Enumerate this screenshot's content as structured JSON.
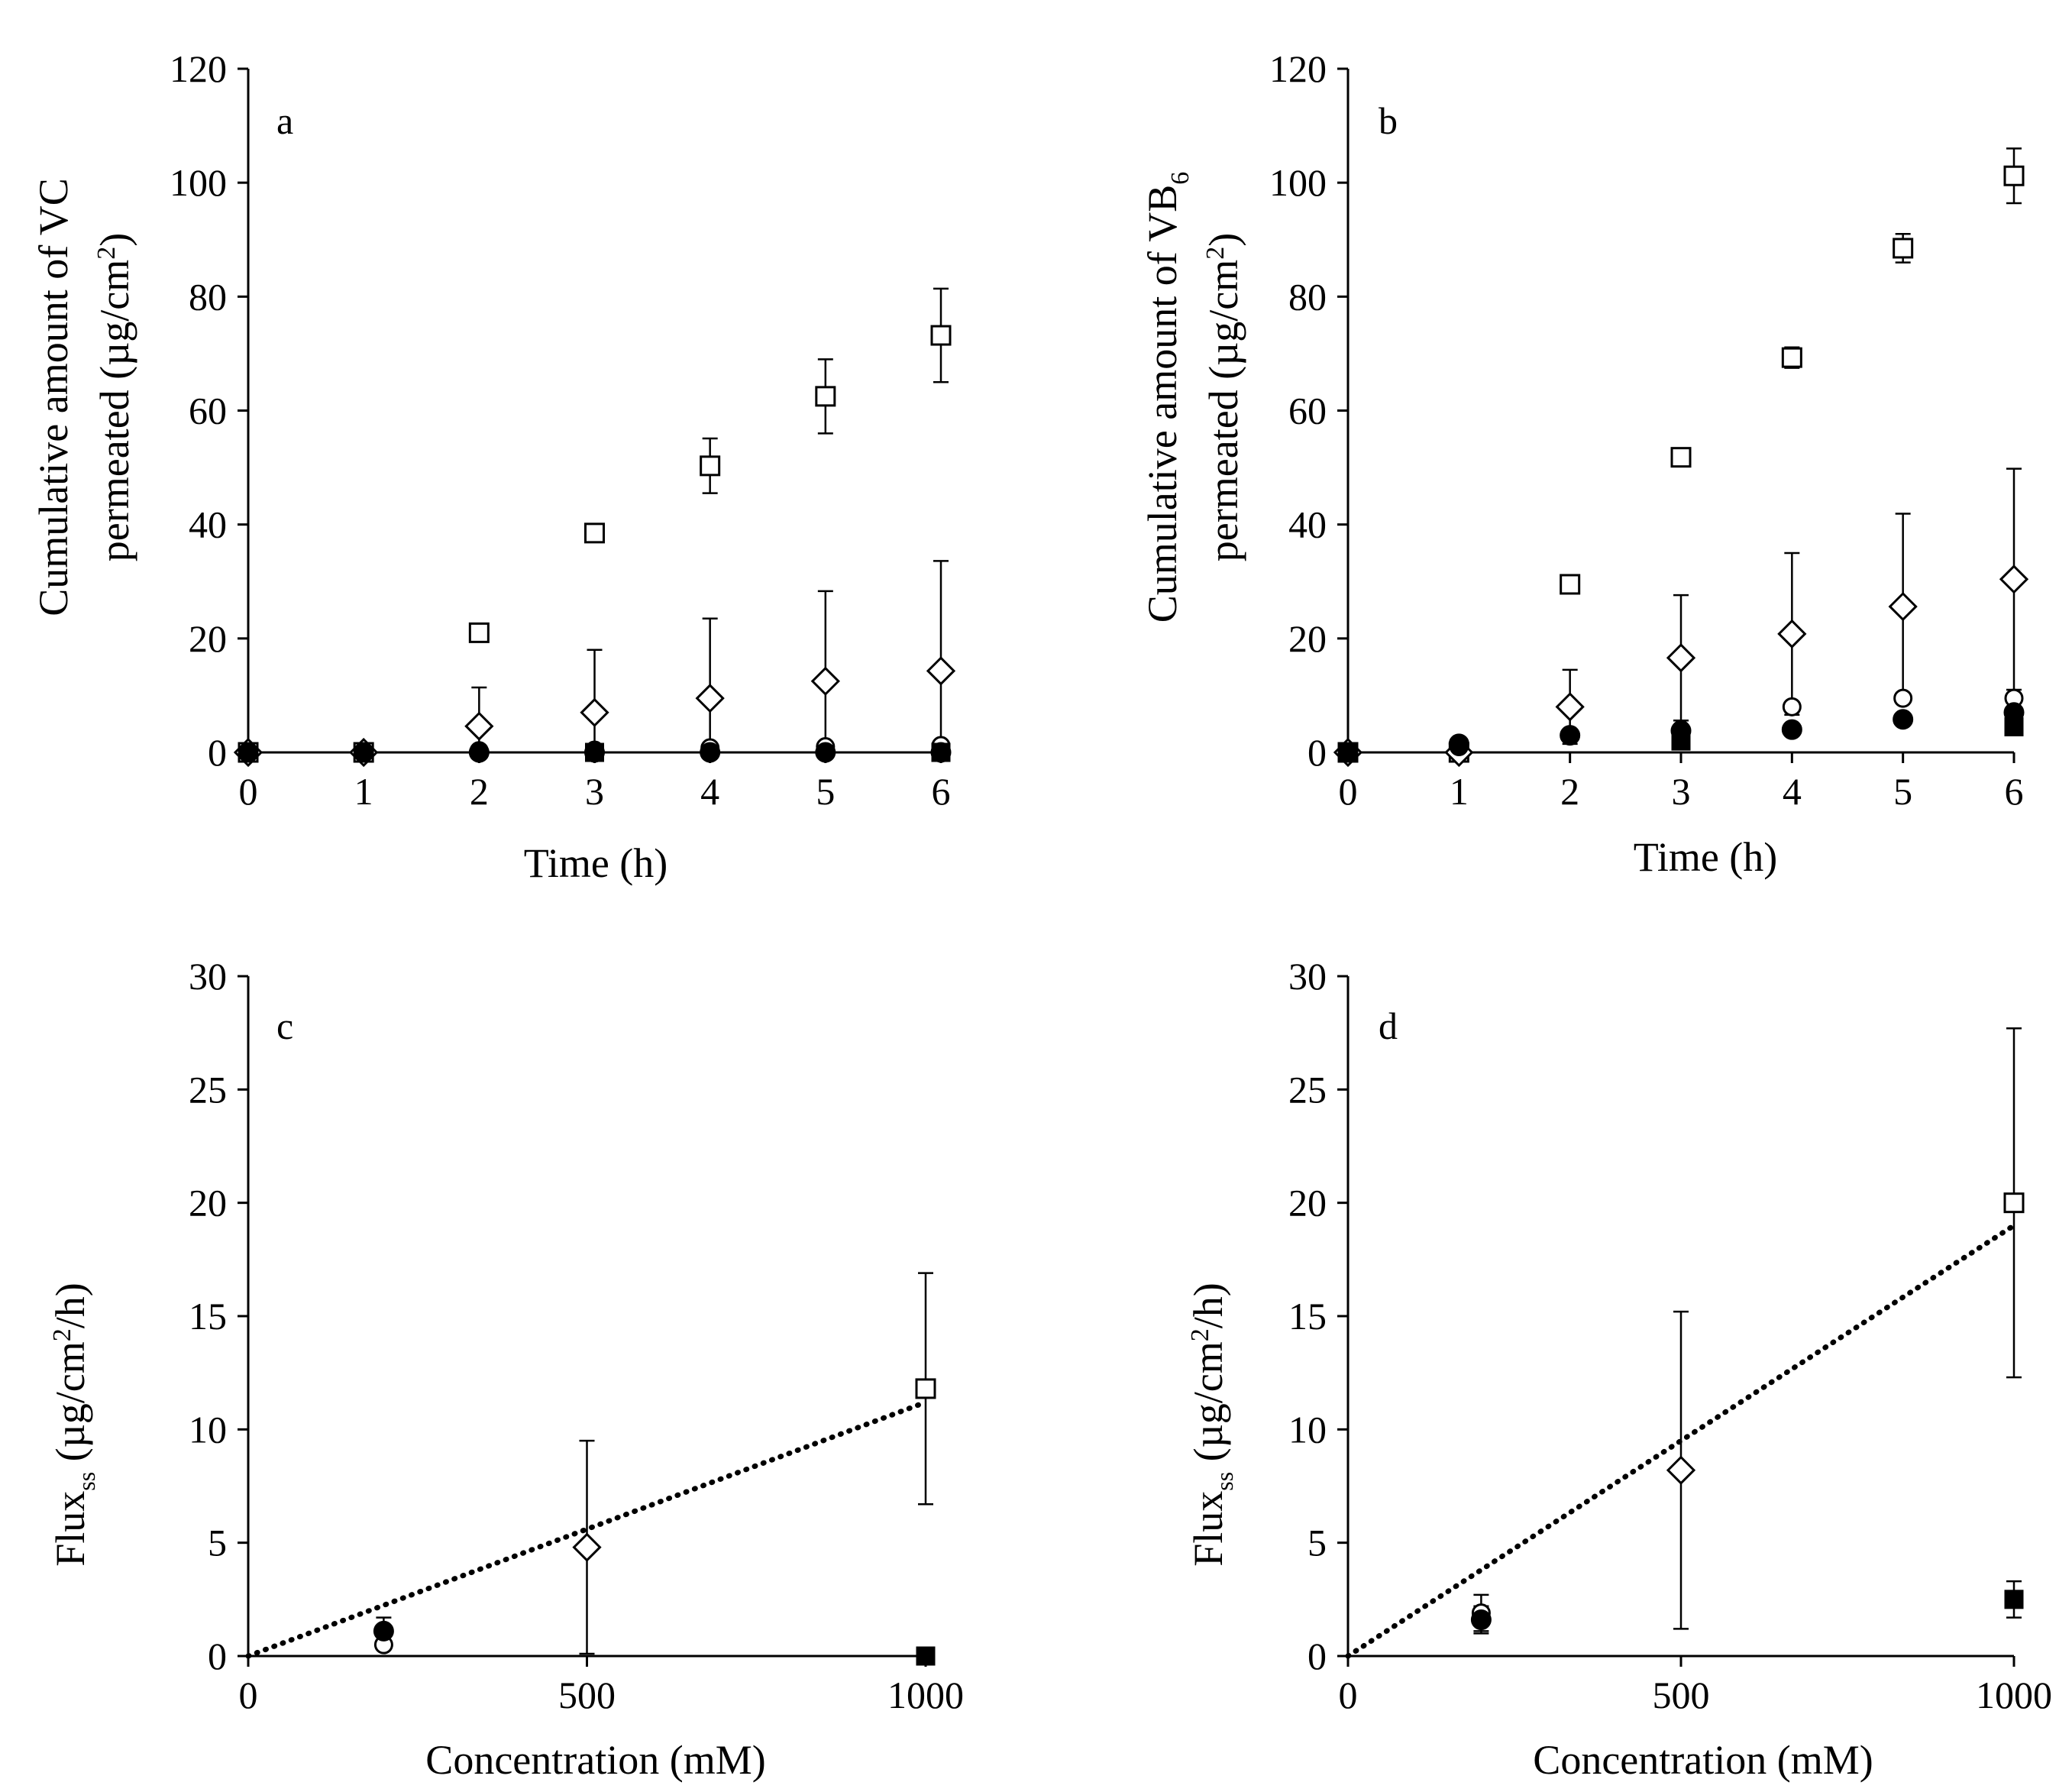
{
  "chart_data": [
    {
      "panel": "a",
      "type": "scatter",
      "panel_label": "a",
      "xlabel": "Time (h)",
      "ylabel_line1": "Cumulative amount of VC",
      "ylabel_line2_prefix": "permeated (µg/cm",
      "ylabel_line2_sup": "2",
      "ylabel_line2_suffix": ")",
      "xlim": [
        0,
        6
      ],
      "ylim": [
        0,
        120
      ],
      "xticks": [
        0,
        1,
        2,
        3,
        4,
        5,
        6
      ],
      "yticks": [
        0,
        20,
        40,
        60,
        80,
        100,
        120
      ],
      "series": [
        {
          "name": "open-square",
          "marker": "square",
          "filled": false,
          "x": [
            0,
            1,
            2,
            3,
            4,
            5,
            6
          ],
          "y": [
            0,
            0,
            21,
            38.5,
            50.3,
            62.5,
            73.2
          ],
          "err": [
            0,
            0,
            1,
            1,
            4.8,
            6.5,
            8.2
          ]
        },
        {
          "name": "open-diamond",
          "marker": "diamond",
          "filled": false,
          "x": [
            0,
            1,
            2,
            3,
            4,
            5,
            6
          ],
          "y": [
            0,
            0,
            4.6,
            7,
            9.5,
            12.5,
            14.3
          ],
          "err": [
            0,
            0,
            6.8,
            11,
            14,
            15.8,
            19.3
          ]
        },
        {
          "name": "open-circle",
          "marker": "circle",
          "filled": false,
          "x": [
            0,
            1,
            2,
            3,
            4,
            5,
            6
          ],
          "y": [
            0,
            0,
            0.3,
            0.4,
            0.8,
            1,
            1.2
          ],
          "err": [
            0,
            0,
            0,
            0,
            0,
            0,
            0
          ]
        },
        {
          "name": "filled-circle",
          "marker": "circle",
          "filled": true,
          "x": [
            0,
            1,
            2,
            3,
            4,
            5,
            6
          ],
          "y": [
            0,
            0,
            0,
            0,
            0,
            0,
            0
          ],
          "err": [
            0,
            0,
            0,
            0,
            0,
            0,
            0
          ]
        },
        {
          "name": "filled-square",
          "marker": "square",
          "filled": true,
          "x": [
            3,
            6
          ],
          "y": [
            0,
            0
          ],
          "err": [
            0,
            0
          ]
        }
      ]
    },
    {
      "panel": "b",
      "type": "scatter",
      "panel_label": "b",
      "xlabel": "Time (h)",
      "ylabel_line1_prefix": "Cumulative amount of VB",
      "ylabel_line1_sub": "6",
      "ylabel_line2_prefix": "permeated (µg/cm",
      "ylabel_line2_sup": "2",
      "ylabel_line2_suffix": ")",
      "xlim": [
        0,
        6
      ],
      "ylim": [
        0,
        120
      ],
      "xticks": [
        0,
        1,
        2,
        3,
        4,
        5,
        6
      ],
      "yticks": [
        0,
        20,
        40,
        60,
        80,
        100,
        120
      ],
      "series": [
        {
          "name": "open-square",
          "marker": "square",
          "filled": false,
          "x": [
            0,
            1,
            2,
            3,
            4,
            5,
            6
          ],
          "y": [
            0,
            0,
            29.5,
            51.8,
            69.3,
            88.5,
            101.2
          ],
          "err": [
            0,
            0,
            1,
            1,
            1.8,
            2.5,
            4.8
          ]
        },
        {
          "name": "open-diamond",
          "marker": "diamond",
          "filled": false,
          "x": [
            0,
            1,
            2,
            3,
            4,
            5,
            6
          ],
          "y": [
            0,
            0,
            8,
            16.6,
            20.8,
            25.6,
            30.4
          ],
          "err": [
            0,
            0,
            6.5,
            11,
            14.2,
            16.3,
            19.4
          ]
        },
        {
          "name": "open-circle",
          "marker": "circle",
          "filled": false,
          "x": [
            0,
            1,
            2,
            3,
            4,
            5,
            6
          ],
          "y": [
            0,
            1,
            3,
            4,
            8,
            9.5,
            9.5
          ],
          "err": [
            0,
            0,
            0,
            0,
            0,
            0,
            0
          ]
        },
        {
          "name": "filled-circle",
          "marker": "circle",
          "filled": true,
          "x": [
            0,
            1,
            2,
            3,
            4,
            5,
            6
          ],
          "y": [
            0,
            1.5,
            3,
            3.8,
            4,
            5.8,
            7
          ],
          "err": [
            0,
            0,
            0,
            0,
            0,
            0,
            0
          ]
        },
        {
          "name": "filled-square",
          "marker": "square",
          "filled": true,
          "x": [
            0,
            3,
            6
          ],
          "y": [
            0,
            2,
            4.5
          ],
          "err": [
            0,
            0,
            0
          ]
        }
      ]
    },
    {
      "panel": "c",
      "type": "scatter",
      "panel_label": "c",
      "xlabel": "Concentration (mM)",
      "ylabel_prefix": "Flux",
      "ylabel_sub": "ss",
      "ylabel_middle": " (µg/cm",
      "ylabel_sup": "2",
      "ylabel_suffix": "/h)",
      "xlim": [
        0,
        1000
      ],
      "ylim": [
        0,
        30
      ],
      "xticks": [
        0,
        500,
        1000
      ],
      "yticks": [
        0,
        5,
        10,
        15,
        20,
        25,
        30
      ],
      "fit_line": {
        "x": [
          0,
          1000
        ],
        "y": [
          0,
          11.2
        ],
        "style": "dotted"
      },
      "series": [
        {
          "name": "open-square",
          "marker": "square",
          "filled": false,
          "x": [
            1000
          ],
          "y": [
            11.8
          ],
          "err": [
            5.1
          ]
        },
        {
          "name": "open-diamond",
          "marker": "diamond",
          "filled": false,
          "x": [
            500
          ],
          "y": [
            4.8
          ],
          "err": [
            4.7
          ]
        },
        {
          "name": "open-circle",
          "marker": "circle",
          "filled": false,
          "x": [
            200
          ],
          "y": [
            0.5
          ],
          "err": [
            0
          ]
        },
        {
          "name": "filled-circle",
          "marker": "circle",
          "filled": true,
          "x": [
            200
          ],
          "y": [
            1.1
          ],
          "err": [
            0.6
          ]
        },
        {
          "name": "filled-square",
          "marker": "square",
          "filled": true,
          "x": [
            1000
          ],
          "y": [
            0
          ],
          "err": [
            0
          ]
        }
      ]
    },
    {
      "panel": "d",
      "type": "scatter",
      "panel_label": "d",
      "xlabel": "Concentration (mM)",
      "ylabel_prefix": "Flux",
      "ylabel_sub": "ss",
      "ylabel_middle": " (µg/cm",
      "ylabel_sup": "2",
      "ylabel_suffix": "/h)",
      "xlim": [
        0,
        1000
      ],
      "ylim": [
        0,
        30
      ],
      "xticks": [
        0,
        500,
        1000
      ],
      "yticks": [
        0,
        5,
        10,
        15,
        20,
        25,
        30
      ],
      "fit_line": {
        "x": [
          0,
          1000
        ],
        "y": [
          0,
          19
        ],
        "style": "dotted"
      },
      "series": [
        {
          "name": "open-square",
          "marker": "square",
          "filled": false,
          "x": [
            1000
          ],
          "y": [
            20
          ],
          "err": [
            7.7
          ]
        },
        {
          "name": "open-diamond",
          "marker": "diamond",
          "filled": false,
          "x": [
            500
          ],
          "y": [
            8.2
          ],
          "err": [
            7
          ]
        },
        {
          "name": "open-circle",
          "marker": "circle",
          "filled": false,
          "x": [
            200
          ],
          "y": [
            1.9
          ],
          "err": [
            0.8
          ]
        },
        {
          "name": "filled-circle",
          "marker": "circle",
          "filled": true,
          "x": [
            200
          ],
          "y": [
            1.6
          ],
          "err": [
            0.6
          ]
        },
        {
          "name": "filled-square",
          "marker": "square",
          "filled": true,
          "x": [
            1000
          ],
          "y": [
            2.5
          ],
          "err": [
            0.8
          ]
        }
      ]
    }
  ]
}
